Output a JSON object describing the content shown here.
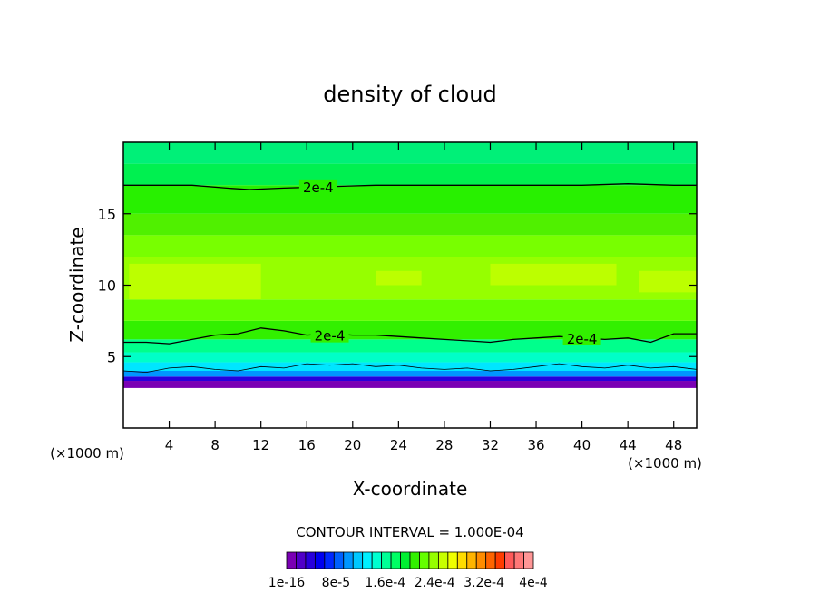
{
  "chart_data": {
    "type": "heatmap",
    "title": "density of cloud",
    "xlabel": "X-coordinate",
    "ylabel": "Z-coordinate",
    "x_unit": "(×1000 m)",
    "z_unit": "(×1000 m)",
    "xlim": [
      0,
      50
    ],
    "ylim": [
      0,
      20
    ],
    "x_ticks": [
      4,
      8,
      12,
      16,
      20,
      24,
      28,
      32,
      36,
      40,
      44,
      48
    ],
    "y_ticks": [
      5,
      10,
      15
    ],
    "contour_interval_label": "CONTOUR INTERVAL = 1.000E-04",
    "contour_label": "2e-4",
    "colorbar": {
      "tick_labels": [
        "1e-16",
        "8e-5",
        "1.6e-4",
        "2.4e-4",
        "3.2e-4",
        "4e-4"
      ],
      "colors": [
        "#7a00b4",
        "#5000c8",
        "#2800dc",
        "#0000f0",
        "#0028ff",
        "#0060ff",
        "#0096ff",
        "#00c8ff",
        "#00f0ff",
        "#00ffd0",
        "#00ff96",
        "#00ff64",
        "#00f032",
        "#32f000",
        "#64ff00",
        "#96ff00",
        "#c8ff00",
        "#f0ff00",
        "#ffdc00",
        "#ffb400",
        "#ff8c00",
        "#ff6400",
        "#ff3c00",
        "#ff5a5a",
        "#ff7878",
        "#ff9696"
      ]
    },
    "bands": [
      {
        "z": [
          0,
          2.8
        ],
        "color": "#ffffff"
      },
      {
        "z": [
          2.8,
          3.3
        ],
        "color": "#7a00b4"
      },
      {
        "z": [
          3.3,
          3.6
        ],
        "color": "#2800dc"
      },
      {
        "z": [
          3.6,
          4.0
        ],
        "color": "#0096ff"
      },
      {
        "z": [
          4.0,
          4.6
        ],
        "color": "#00e6ff"
      },
      {
        "z": [
          4.6,
          5.3
        ],
        "color": "#00ffc8"
      },
      {
        "z": [
          5.3,
          6.2
        ],
        "color": "#00ff8c"
      },
      {
        "z": [
          6.2,
          7.5
        ],
        "color": "#32f000"
      },
      {
        "z": [
          7.5,
          9.0
        ],
        "color": "#64ff00"
      },
      {
        "z": [
          9.0,
          12.0
        ],
        "color": "#96ff00"
      },
      {
        "z": [
          12.0,
          13.5
        ],
        "color": "#78ff00"
      },
      {
        "z": [
          13.5,
          15.0
        ],
        "color": "#50f000"
      },
      {
        "z": [
          15.0,
          17.0
        ],
        "color": "#28f000"
      },
      {
        "z": [
          17.0,
          18.5
        ],
        "color": "#00f050"
      },
      {
        "z": [
          18.5,
          20.0
        ],
        "color": "#00f078"
      }
    ],
    "yellow_patches": [
      {
        "x": [
          0.5,
          12.0
        ],
        "z": [
          9.0,
          11.5
        ]
      },
      {
        "x": [
          22.0,
          26.0
        ],
        "z": [
          10.0,
          11.0
        ]
      },
      {
        "x": [
          32.0,
          43.0
        ],
        "z": [
          10.0,
          11.5
        ]
      },
      {
        "x": [
          45.0,
          50.0
        ],
        "z": [
          9.5,
          11.0
        ]
      }
    ],
    "contours": [
      {
        "value": "2e-4",
        "points": [
          [
            0,
            17.0
          ],
          [
            6,
            17.0
          ],
          [
            9,
            16.8
          ],
          [
            11,
            16.7
          ],
          [
            14,
            16.8
          ],
          [
            18,
            16.9
          ],
          [
            22,
            17.0
          ],
          [
            30,
            17.0
          ],
          [
            36,
            17.0
          ],
          [
            40,
            17.0
          ],
          [
            44,
            17.1
          ],
          [
            48,
            17.0
          ],
          [
            50,
            17.0
          ]
        ]
      },
      {
        "value": "2e-4",
        "points": [
          [
            0,
            6.0
          ],
          [
            2,
            6.0
          ],
          [
            4,
            5.9
          ],
          [
            6,
            6.2
          ],
          [
            8,
            6.5
          ],
          [
            10,
            6.6
          ],
          [
            12,
            7.0
          ],
          [
            14,
            6.8
          ],
          [
            16,
            6.5
          ],
          [
            18,
            6.6
          ],
          [
            20,
            6.5
          ],
          [
            22,
            6.5
          ],
          [
            24,
            6.4
          ],
          [
            26,
            6.3
          ],
          [
            28,
            6.2
          ],
          [
            30,
            6.1
          ],
          [
            32,
            6.0
          ],
          [
            34,
            6.2
          ],
          [
            36,
            6.3
          ],
          [
            38,
            6.4
          ],
          [
            40,
            6.3
          ],
          [
            42,
            6.2
          ],
          [
            44,
            6.3
          ],
          [
            46,
            6.0
          ],
          [
            48,
            6.6
          ],
          [
            50,
            6.6
          ]
        ]
      },
      {
        "value": "",
        "points": [
          [
            0,
            4.0
          ],
          [
            2,
            3.9
          ],
          [
            4,
            4.2
          ],
          [
            6,
            4.3
          ],
          [
            8,
            4.1
          ],
          [
            10,
            4.0
          ],
          [
            12,
            4.3
          ],
          [
            14,
            4.2
          ],
          [
            16,
            4.5
          ],
          [
            18,
            4.4
          ],
          [
            20,
            4.5
          ],
          [
            22,
            4.3
          ],
          [
            24,
            4.4
          ],
          [
            26,
            4.2
          ],
          [
            28,
            4.1
          ],
          [
            30,
            4.2
          ],
          [
            32,
            4.0
          ],
          [
            34,
            4.1
          ],
          [
            36,
            4.3
          ],
          [
            38,
            4.5
          ],
          [
            40,
            4.3
          ],
          [
            42,
            4.2
          ],
          [
            44,
            4.4
          ],
          [
            46,
            4.2
          ],
          [
            48,
            4.3
          ],
          [
            50,
            4.1
          ]
        ]
      }
    ]
  }
}
